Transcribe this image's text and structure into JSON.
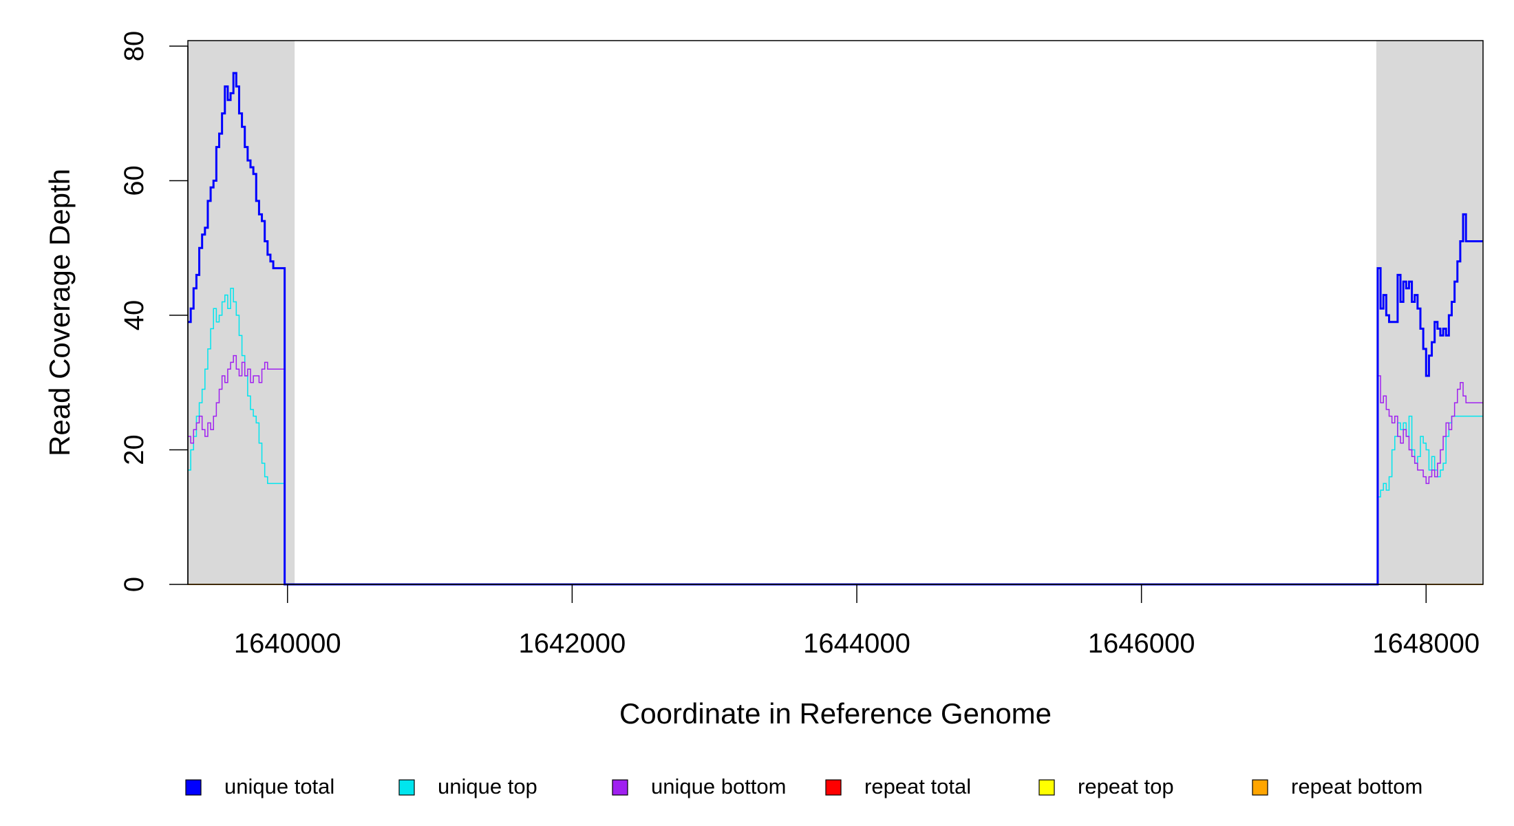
{
  "chart_data": {
    "type": "line",
    "step": true,
    "xlabel": "Coordinate in Reference Genome",
    "ylabel": "Read Coverage Depth",
    "xlim": [
      1639300,
      1648400
    ],
    "ylim": [
      0,
      80
    ],
    "x_ticks": [
      1640000,
      1642000,
      1644000,
      1646000,
      1648000
    ],
    "y_ticks": [
      0,
      20,
      40,
      60,
      80
    ],
    "x_tick_labels": [
      "1640000",
      "1642000",
      "1644000",
      "1646000",
      "1648000"
    ],
    "y_tick_labels": [
      "0",
      "20",
      "40",
      "60",
      "80"
    ],
    "shaded_regions": [
      {
        "x0": 1639300,
        "x1": 1640050,
        "color": "#d9d9d9"
      },
      {
        "x0": 1647650,
        "x1": 1648400,
        "color": "#d9d9d9"
      }
    ],
    "legend_position": "bottom",
    "series": [
      {
        "name": "unique total",
        "color": "#0000ff",
        "width": 3,
        "x": [
          1639300,
          1639320,
          1639340,
          1639360,
          1639380,
          1639400,
          1639420,
          1639440,
          1639460,
          1639480,
          1639500,
          1639520,
          1639540,
          1639560,
          1639580,
          1639600,
          1639620,
          1639640,
          1639660,
          1639680,
          1639700,
          1639720,
          1639740,
          1639760,
          1639780,
          1639800,
          1639820,
          1639840,
          1639860,
          1639880,
          1639900,
          1639920,
          1639940,
          1639960,
          1639980,
          1640000,
          1640020,
          1640040,
          1640060,
          1640080,
          1647640,
          1647660,
          1647680,
          1647700,
          1647720,
          1647740,
          1647760,
          1647780,
          1647800,
          1647820,
          1647840,
          1647860,
          1647880,
          1647900,
          1647920,
          1647940,
          1647960,
          1647980,
          1648000,
          1648020,
          1648040,
          1648060,
          1648080,
          1648100,
          1648120,
          1648140,
          1648160,
          1648180,
          1648200,
          1648220,
          1648240,
          1648260,
          1648280,
          1648300,
          1648320,
          1648340,
          1648360,
          1648380,
          1648400
        ],
        "y": [
          39,
          41,
          44,
          46,
          50,
          52,
          53,
          57,
          59,
          60,
          65,
          67,
          70,
          74,
          72,
          73,
          76,
          74,
          70,
          68,
          65,
          63,
          62,
          61,
          57,
          55,
          54,
          51,
          49,
          48,
          47,
          47,
          47,
          47,
          0,
          0,
          0,
          0,
          0,
          0,
          0,
          47,
          41,
          43,
          40,
          39,
          39,
          39,
          46,
          42,
          45,
          44,
          45,
          42,
          43,
          41,
          38,
          35,
          31,
          34,
          36,
          39,
          38,
          37,
          38,
          37,
          40,
          42,
          45,
          48,
          51,
          55,
          51,
          51,
          51,
          51,
          51,
          51,
          51
        ]
      },
      {
        "name": "unique top",
        "color": "#00e5ee",
        "width": 1.5,
        "x": [
          1639300,
          1639320,
          1639340,
          1639360,
          1639380,
          1639400,
          1639420,
          1639440,
          1639460,
          1639480,
          1639500,
          1639520,
          1639540,
          1639560,
          1639580,
          1639600,
          1639620,
          1639640,
          1639660,
          1639680,
          1639700,
          1639720,
          1639740,
          1639760,
          1639780,
          1639800,
          1639820,
          1639840,
          1639860,
          1639880,
          1639900,
          1639920,
          1639940,
          1639960,
          1639980,
          1640000,
          1640020,
          1640040,
          1640060,
          1640080,
          1647640,
          1647660,
          1647680,
          1647700,
          1647720,
          1647740,
          1647760,
          1647780,
          1647800,
          1647820,
          1647840,
          1647860,
          1647880,
          1647900,
          1647920,
          1647940,
          1647960,
          1647980,
          1648000,
          1648020,
          1648040,
          1648060,
          1648080,
          1648100,
          1648120,
          1648140,
          1648160,
          1648180,
          1648200,
          1648220,
          1648240,
          1648260,
          1648280,
          1648300,
          1648320,
          1648340,
          1648360,
          1648380,
          1648400
        ],
        "y": [
          17,
          20,
          22,
          25,
          27,
          29,
          32,
          35,
          38,
          41,
          39,
          40,
          42,
          43,
          41,
          44,
          42,
          40,
          37,
          34,
          31,
          28,
          26,
          25,
          24,
          21,
          18,
          16,
          15,
          15,
          15,
          15,
          15,
          15,
          0,
          0,
          0,
          0,
          0,
          0,
          0,
          13,
          14,
          15,
          14,
          16,
          20,
          22,
          24,
          23,
          24,
          22,
          25,
          20,
          18,
          19,
          22,
          21,
          20,
          17,
          19,
          17,
          16,
          17,
          18,
          22,
          24,
          25,
          25,
          25,
          25,
          25,
          25,
          25,
          25,
          25,
          25,
          25,
          25
        ]
      },
      {
        "name": "unique bottom",
        "color": "#a020f0",
        "width": 1.5,
        "x": [
          1639300,
          1639320,
          1639340,
          1639360,
          1639380,
          1639400,
          1639420,
          1639440,
          1639460,
          1639480,
          1639500,
          1639520,
          1639540,
          1639560,
          1639580,
          1639600,
          1639620,
          1639640,
          1639660,
          1639680,
          1639700,
          1639720,
          1639740,
          1639760,
          1639780,
          1639800,
          1639820,
          1639840,
          1639860,
          1639880,
          1639900,
          1639920,
          1639940,
          1639960,
          1639980,
          1640000,
          1640020,
          1640040,
          1640060,
          1640080,
          1647640,
          1647660,
          1647680,
          1647700,
          1647720,
          1647740,
          1647760,
          1647780,
          1647800,
          1647820,
          1647840,
          1647860,
          1647880,
          1647900,
          1647920,
          1647940,
          1647960,
          1647980,
          1648000,
          1648020,
          1648040,
          1648060,
          1648080,
          1648100,
          1648120,
          1648140,
          1648160,
          1648180,
          1648200,
          1648220,
          1648240,
          1648260,
          1648280,
          1648300,
          1648320,
          1648340,
          1648360,
          1648380,
          1648400
        ],
        "y": [
          22,
          21,
          23,
          24,
          25,
          23,
          22,
          24,
          23,
          25,
          27,
          29,
          31,
          30,
          32,
          33,
          34,
          32,
          31,
          33,
          31,
          32,
          30,
          31,
          31,
          30,
          32,
          33,
          32,
          32,
          32,
          32,
          32,
          32,
          0,
          0,
          0,
          0,
          0,
          0,
          0,
          31,
          27,
          28,
          26,
          25,
          24,
          25,
          22,
          21,
          23,
          22,
          20,
          19,
          18,
          17,
          17,
          16,
          15,
          16,
          17,
          16,
          18,
          20,
          22,
          24,
          23,
          25,
          27,
          29,
          30,
          28,
          27,
          27,
          27,
          27,
          27,
          27,
          27
        ]
      },
      {
        "name": "repeat total",
        "color": "#ff0000",
        "width": 1.5,
        "x": [
          1639300,
          1648400
        ],
        "y": [
          0,
          0
        ]
      },
      {
        "name": "repeat top",
        "color": "#ffff00",
        "width": 1.5,
        "x": [
          1639300,
          1648400
        ],
        "y": [
          0,
          0
        ]
      },
      {
        "name": "repeat bottom",
        "color": "#ffa500",
        "width": 2,
        "x": [
          1639300,
          1648400
        ],
        "y": [
          0,
          0
        ]
      }
    ]
  }
}
